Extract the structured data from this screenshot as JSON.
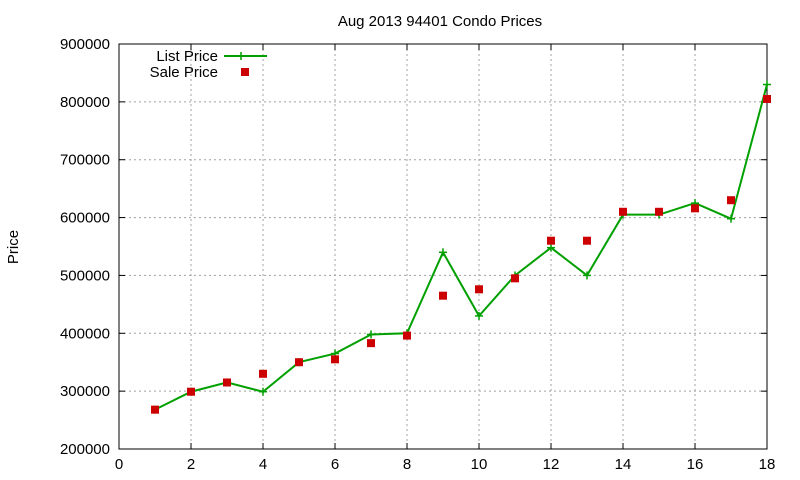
{
  "chart_data": {
    "type": "line",
    "title": "Aug 2013 94401 Condo Prices",
    "xlabel": "",
    "ylabel": "Price",
    "xlim": [
      0,
      18
    ],
    "ylim": [
      200000,
      900000
    ],
    "x_ticks": [
      0,
      2,
      4,
      6,
      8,
      10,
      12,
      14,
      16,
      18
    ],
    "y_ticks": [
      200000,
      300000,
      400000,
      500000,
      600000,
      700000,
      800000,
      900000
    ],
    "grid": true,
    "legend_position": "top-left",
    "series": [
      {
        "name": "List Price",
        "style": "line+cross",
        "color": "#00a000",
        "x": [
          1,
          2,
          3,
          4,
          5,
          6,
          7,
          8,
          9,
          10,
          11,
          12,
          13,
          14,
          15,
          16,
          17,
          18
        ],
        "y": [
          268000,
          299000,
          315000,
          299000,
          350000,
          365000,
          398000,
          400000,
          540000,
          430000,
          500000,
          548000,
          500000,
          605000,
          605000,
          625000,
          598000,
          830000
        ]
      },
      {
        "name": "Sale Price",
        "style": "square",
        "color": "#cc0000",
        "x": [
          1,
          2,
          3,
          4,
          5,
          6,
          7,
          8,
          9,
          10,
          11,
          12,
          13,
          14,
          15,
          16,
          17,
          18
        ],
        "y": [
          268000,
          299000,
          315000,
          330000,
          350000,
          355000,
          383000,
          396000,
          465000,
          476000,
          495000,
          560000,
          560000,
          610000,
          610000,
          616000,
          630000,
          805000
        ]
      }
    ]
  }
}
